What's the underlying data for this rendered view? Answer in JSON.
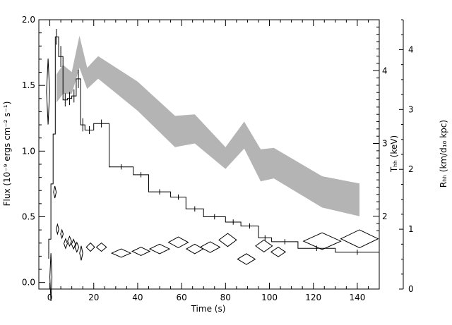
{
  "chart_data": {
    "type": "line",
    "xlabel": "Time (s)",
    "ylabel_left": "Flux (10⁻⁹ ergs cm⁻² s⁻¹)",
    "ylabel_right_inner": "Tₕₕ (keV)",
    "ylabel_right_outer": "Rₕₕ (km/d₁₀ kpc)",
    "xlim": [
      -5,
      150
    ],
    "ylim_left": [
      -0.05,
      2.0
    ],
    "ylim_right_inner_keV": [
      1.0,
      4.7
    ],
    "ylim_right_outer": [
      0,
      4.5
    ],
    "x_ticks": [
      "0",
      "20",
      "40",
      "60",
      "80",
      "100",
      "120",
      "140"
    ],
    "x_tick_values": [
      0,
      20,
      40,
      60,
      80,
      100,
      120,
      140
    ],
    "y_left_ticks": [
      "0.0",
      "0.5",
      "1.0",
      "1.5",
      "2.0"
    ],
    "y_left_tick_values": [
      0.0,
      0.5,
      1.0,
      1.5,
      2.0
    ],
    "y_inner_ticks": [
      "2",
      "3",
      "4"
    ],
    "y_inner_tick_values": [
      2,
      3,
      4
    ],
    "y_outer_ticks": [
      "0",
      "1",
      "2",
      "3",
      "4"
    ],
    "y_outer_tick_values": [
      0,
      1,
      2,
      3,
      4
    ],
    "series": [
      {
        "kind": "flux-histogram",
        "bins": [
          [
            -0.5,
            0.5,
            0.33
          ],
          [
            0.5,
            1.5,
            0.75
          ],
          [
            1.5,
            2.5,
            1.13
          ],
          [
            2.5,
            4.0,
            1.87
          ],
          [
            4.0,
            6.0,
            1.72
          ],
          [
            6.0,
            8.0,
            1.39
          ],
          [
            8.0,
            10.0,
            1.4
          ],
          [
            10.0,
            12.0,
            1.42
          ],
          [
            12.0,
            14.0,
            1.55
          ],
          [
            14.0,
            16.0,
            1.2
          ],
          [
            16.0,
            20.0,
            1.16
          ],
          [
            20.0,
            27.0,
            1.21
          ],
          [
            27.0,
            38.0,
            0.88
          ],
          [
            38.0,
            45.0,
            0.82
          ],
          [
            45.0,
            55.0,
            0.69
          ],
          [
            55.0,
            62.0,
            0.65
          ],
          [
            62.0,
            70.0,
            0.56
          ],
          [
            70.0,
            80.0,
            0.5
          ],
          [
            80.0,
            87.0,
            0.46
          ],
          [
            87.0,
            95.0,
            0.43
          ],
          [
            95.0,
            101.0,
            0.34
          ],
          [
            101.0,
            113.0,
            0.31
          ],
          [
            113.0,
            130.0,
            0.26
          ],
          [
            130.0,
            150.0,
            0.23
          ]
        ],
        "errors": [
          [
            3.0,
            1.87,
            0.06
          ],
          [
            5.0,
            1.72,
            0.08
          ],
          [
            7.0,
            1.39,
            0.05
          ],
          [
            9.0,
            1.4,
            0.05
          ],
          [
            11.0,
            1.42,
            0.05
          ],
          [
            13.0,
            1.55,
            0.07
          ],
          [
            15.0,
            1.2,
            0.05
          ],
          [
            18.0,
            1.16,
            0.03
          ],
          [
            23.5,
            1.21,
            0.03
          ],
          [
            32.5,
            0.88,
            0.02
          ],
          [
            41.5,
            0.82,
            0.02
          ],
          [
            50.0,
            0.69,
            0.02
          ],
          [
            58.5,
            0.65,
            0.02
          ],
          [
            66.0,
            0.56,
            0.02
          ],
          [
            75.0,
            0.5,
            0.02
          ],
          [
            83.5,
            0.46,
            0.02
          ],
          [
            91.0,
            0.43,
            0.02
          ],
          [
            98.0,
            0.34,
            0.02
          ],
          [
            107.0,
            0.31,
            0.02
          ],
          [
            121.5,
            0.26,
            0.02
          ],
          [
            140.0,
            0.23,
            0.02
          ]
        ]
      },
      {
        "kind": "temperature-band",
        "unit": "keV",
        "upper": [
          [
            3.0,
            3.95
          ],
          [
            6.0,
            4.08
          ],
          [
            10.0,
            3.98
          ],
          [
            13.5,
            4.48
          ],
          [
            17.0,
            4.04
          ],
          [
            22.0,
            4.2
          ],
          [
            40.0,
            3.85
          ],
          [
            57.0,
            3.38
          ],
          [
            66.0,
            3.4
          ],
          [
            80.0,
            2.95
          ],
          [
            88.5,
            3.3
          ],
          [
            96.0,
            2.92
          ],
          [
            102.0,
            2.94
          ],
          [
            124.0,
            2.55
          ],
          [
            141.0,
            2.45
          ]
        ],
        "lower": [
          [
            3.0,
            3.56
          ],
          [
            6.0,
            3.68
          ],
          [
            10.0,
            3.68
          ],
          [
            13.5,
            4.04
          ],
          [
            17.0,
            3.75
          ],
          [
            22.0,
            3.89
          ],
          [
            40.0,
            3.45
          ],
          [
            57.0,
            2.95
          ],
          [
            66.0,
            3.0
          ],
          [
            80.0,
            2.65
          ],
          [
            88.5,
            2.93
          ],
          [
            96.0,
            2.48
          ],
          [
            102.0,
            2.52
          ],
          [
            124.0,
            2.12
          ],
          [
            141.0,
            2.0
          ]
        ]
      },
      {
        "kind": "radius-diamonds",
        "points": [
          [
            -0.8,
            3.3,
            0.7,
            0.55
          ],
          [
            0.5,
            0.2,
            0.4,
            0.4
          ],
          [
            2.3,
            1.62,
            0.6,
            0.1
          ],
          [
            3.5,
            1.0,
            0.6,
            0.08
          ],
          [
            5.5,
            0.92,
            0.6,
            0.07
          ],
          [
            7.2,
            0.76,
            0.8,
            0.08
          ],
          [
            9.0,
            0.8,
            0.9,
            0.08
          ],
          [
            10.8,
            0.75,
            0.9,
            0.08
          ],
          [
            12.3,
            0.7,
            0.9,
            0.08
          ],
          [
            14.3,
            0.6,
            0.7,
            0.12
          ],
          [
            18.5,
            0.7,
            1.9,
            0.07
          ],
          [
            23.5,
            0.7,
            2.3,
            0.07
          ],
          [
            32.5,
            0.6,
            4.3,
            0.07
          ],
          [
            41.5,
            0.63,
            4.0,
            0.07
          ],
          [
            50.0,
            0.67,
            4.5,
            0.08
          ],
          [
            58.5,
            0.78,
            4.5,
            0.09
          ],
          [
            66.0,
            0.67,
            3.8,
            0.08
          ],
          [
            73.0,
            0.7,
            4.5,
            0.09
          ],
          [
            81.0,
            0.82,
            4.0,
            0.11
          ],
          [
            89.5,
            0.5,
            4.0,
            0.09
          ],
          [
            97.5,
            0.72,
            3.8,
            0.1
          ],
          [
            104.0,
            0.62,
            3.3,
            0.08
          ],
          [
            124.0,
            0.8,
            8.5,
            0.14
          ],
          [
            141.0,
            0.84,
            8.5,
            0.15
          ]
        ]
      }
    ]
  }
}
